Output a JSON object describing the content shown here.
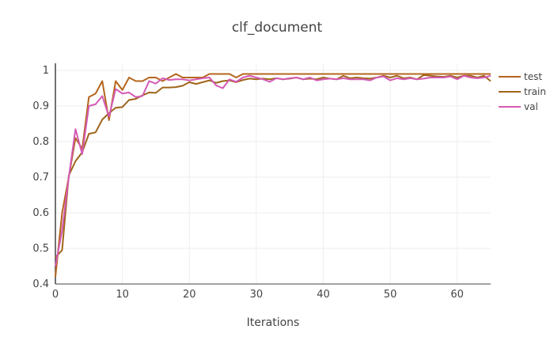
{
  "chart_data": {
    "type": "line",
    "title": "clf_document",
    "xlabel": "Iterations",
    "ylabel": "",
    "xlim": [
      0,
      65
    ],
    "ylim": [
      0.4,
      1.02
    ],
    "x_ticks": [
      "0",
      "10",
      "20",
      "30",
      "40",
      "50",
      "60"
    ],
    "y_ticks": [
      "0.4",
      "0.5",
      "0.6",
      "0.7",
      "0.8",
      "0.9",
      "1"
    ],
    "grid": true,
    "legend_position": "top-right",
    "series": [
      {
        "name": "test",
        "color": "#b5651d",
        "x": [
          0,
          1,
          2,
          3,
          4,
          5,
          6,
          7,
          8,
          9,
          10,
          11,
          12,
          13,
          14,
          15,
          16,
          17,
          18,
          19,
          20,
          21,
          22,
          23,
          24,
          25,
          26,
          27,
          28,
          29,
          30,
          31,
          32,
          33,
          34,
          35,
          36,
          37,
          38,
          39,
          40,
          41,
          42,
          43,
          44,
          45,
          46,
          47,
          48,
          49,
          50,
          51,
          52,
          53,
          54,
          55,
          56,
          57,
          58,
          59,
          60,
          61,
          62,
          63,
          64,
          65
        ],
        "y": [
          0.42,
          0.6,
          0.7,
          0.81,
          0.78,
          0.925,
          0.935,
          0.97,
          0.86,
          0.97,
          0.945,
          0.98,
          0.97,
          0.97,
          0.98,
          0.98,
          0.97,
          0.98,
          0.99,
          0.98,
          0.98,
          0.98,
          0.98,
          0.99,
          0.99,
          0.99,
          0.99,
          0.98,
          0.99,
          0.99,
          0.99,
          0.99,
          0.99,
          0.99,
          0.99,
          0.99,
          0.99,
          0.99,
          0.99,
          0.99,
          0.99,
          0.99,
          0.99,
          0.99,
          0.99,
          0.99,
          0.99,
          0.99,
          0.99,
          0.99,
          0.99,
          0.99,
          0.99,
          0.99,
          0.99,
          0.99,
          0.99,
          0.99,
          0.99,
          0.99,
          0.99,
          0.99,
          0.99,
          0.99,
          0.99,
          0.99
        ]
      },
      {
        "name": "train",
        "color": "#a0651a",
        "x": [
          0,
          1,
          2,
          3,
          4,
          5,
          6,
          7,
          8,
          9,
          10,
          11,
          12,
          13,
          14,
          15,
          16,
          17,
          18,
          19,
          20,
          21,
          22,
          23,
          24,
          25,
          26,
          27,
          28,
          29,
          30,
          31,
          32,
          33,
          34,
          35,
          36,
          37,
          38,
          39,
          40,
          41,
          42,
          43,
          44,
          45,
          46,
          47,
          48,
          49,
          50,
          51,
          52,
          53,
          54,
          55,
          56,
          57,
          58,
          59,
          60,
          61,
          62,
          63,
          64,
          65
        ],
        "y": [
          0.475,
          0.495,
          0.705,
          0.745,
          0.77,
          0.822,
          0.826,
          0.862,
          0.88,
          0.895,
          0.897,
          0.917,
          0.92,
          0.93,
          0.938,
          0.937,
          0.952,
          0.952,
          0.953,
          0.957,
          0.967,
          0.962,
          0.967,
          0.972,
          0.965,
          0.97,
          0.972,
          0.967,
          0.973,
          0.977,
          0.975,
          0.977,
          0.975,
          0.978,
          0.975,
          0.977,
          0.98,
          0.975,
          0.977,
          0.975,
          0.98,
          0.977,
          0.975,
          0.985,
          0.978,
          0.98,
          0.978,
          0.977,
          0.98,
          0.985,
          0.98,
          0.985,
          0.978,
          0.98,
          0.975,
          0.987,
          0.985,
          0.983,
          0.982,
          0.985,
          0.98,
          0.985,
          0.985,
          0.98,
          0.985,
          0.97
        ]
      },
      {
        "name": "val",
        "color": "#d45ab5",
        "x": [
          0,
          1,
          2,
          3,
          4,
          5,
          6,
          7,
          8,
          9,
          10,
          11,
          12,
          13,
          14,
          15,
          16,
          17,
          18,
          19,
          20,
          21,
          22,
          23,
          24,
          25,
          26,
          27,
          28,
          29,
          30,
          31,
          32,
          33,
          34,
          35,
          36,
          37,
          38,
          39,
          40,
          41,
          42,
          43,
          44,
          45,
          46,
          47,
          48,
          49,
          50,
          51,
          52,
          53,
          54,
          55,
          56,
          57,
          58,
          59,
          60,
          61,
          62,
          63,
          64,
          65
        ],
        "y": [
          0.45,
          0.55,
          0.7,
          0.835,
          0.765,
          0.9,
          0.905,
          0.928,
          0.87,
          0.948,
          0.935,
          0.938,
          0.925,
          0.928,
          0.97,
          0.963,
          0.978,
          0.973,
          0.975,
          0.975,
          0.972,
          0.975,
          0.978,
          0.98,
          0.958,
          0.95,
          0.975,
          0.968,
          0.98,
          0.985,
          0.98,
          0.975,
          0.968,
          0.978,
          0.975,
          0.978,
          0.98,
          0.975,
          0.98,
          0.972,
          0.975,
          0.977,
          0.975,
          0.978,
          0.975,
          0.975,
          0.975,
          0.972,
          0.98,
          0.983,
          0.972,
          0.978,
          0.975,
          0.978,
          0.975,
          0.977,
          0.98,
          0.98,
          0.98,
          0.983,
          0.975,
          0.985,
          0.98,
          0.978,
          0.98,
          0.985
        ]
      }
    ]
  }
}
